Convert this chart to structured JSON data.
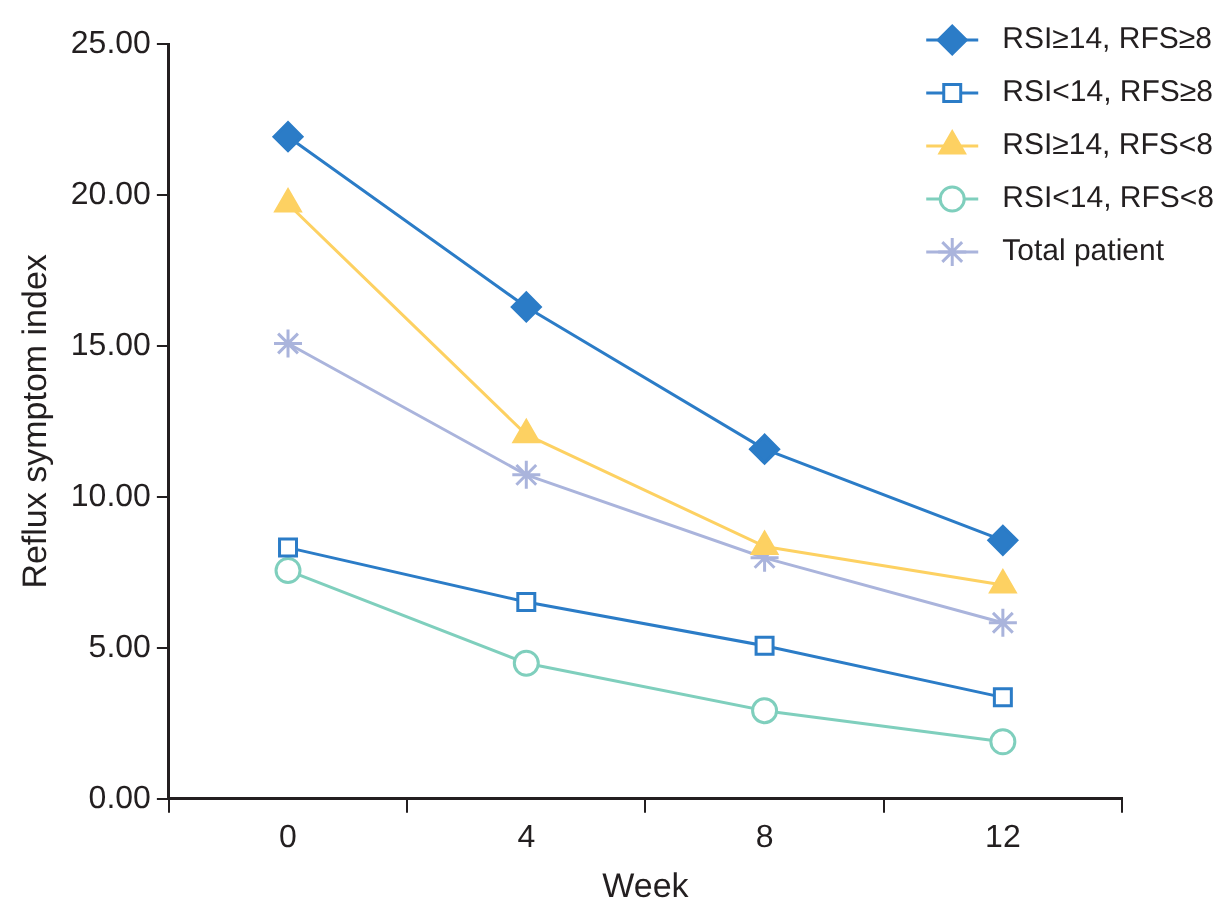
{
  "chart_data": {
    "type": "line",
    "xlabel": "Week",
    "ylabel": "Reflux symptom index",
    "categories": [
      "0",
      "4",
      "8",
      "12"
    ],
    "ylim": [
      0,
      25
    ],
    "yticks": [
      {
        "value": 0,
        "label": "0.00"
      },
      {
        "value": 5,
        "label": "5.00"
      },
      {
        "value": 10,
        "label": "10.00"
      },
      {
        "value": 15,
        "label": "15.00"
      },
      {
        "value": 20,
        "label": "20.00"
      },
      {
        "value": 25,
        "label": "25.00"
      }
    ],
    "grid": false,
    "legend": "top right",
    "line_style": "solid",
    "series": [
      {
        "name": "RSI≥14, RFS≥8",
        "color": "#2b7cc7",
        "marker": "diamond",
        "values": [
          21.93,
          16.29,
          11.58,
          8.56
        ]
      },
      {
        "name": "RSI<14, RFS≥8",
        "color": "#2b7cc7",
        "marker": "square",
        "values": [
          8.32,
          6.52,
          5.07,
          3.36
        ]
      },
      {
        "name": "RSI≥14, RFS<8",
        "color": "#fdd162",
        "marker": "triangle",
        "values": [
          19.7,
          12.06,
          8.36,
          7.08
        ]
      },
      {
        "name": "RSI<14, RFS<8",
        "color": "#7fcfbd",
        "marker": "circle",
        "values": [
          7.56,
          4.49,
          2.92,
          1.89
        ]
      },
      {
        "name": "Total patient",
        "color": "#aab4dc",
        "marker": "cross",
        "values": [
          15.08,
          10.73,
          7.98,
          5.83
        ]
      }
    ]
  }
}
